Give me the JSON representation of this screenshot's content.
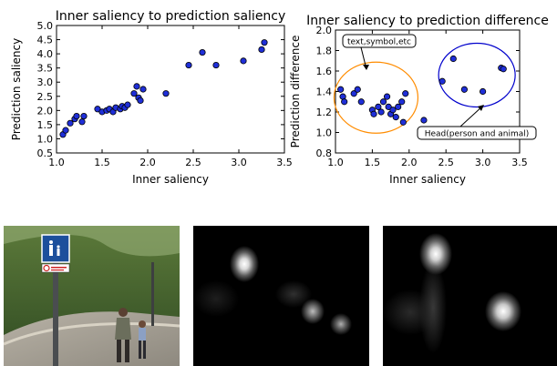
{
  "chart_data": [
    {
      "type": "scatter",
      "title": "Inner saliency to prediction saliency",
      "xlabel": "Inner saliency",
      "ylabel": "Prediction saliency",
      "xlim": [
        1.0,
        3.5
      ],
      "ylim": [
        0.5,
        5.0
      ],
      "xticks": [
        "1.0",
        "1.5",
        "2.0",
        "2.5",
        "3.0",
        "3.5"
      ],
      "yticks": [
        "0.5",
        "1.0",
        "1.5",
        "2.0",
        "2.5",
        "3.0",
        "3.5",
        "4.0",
        "4.5",
        "5.0"
      ],
      "marker_color": "#1f2fd8",
      "points": [
        [
          1.07,
          1.15
        ],
        [
          1.1,
          1.3
        ],
        [
          1.15,
          1.55
        ],
        [
          1.2,
          1.7
        ],
        [
          1.22,
          1.8
        ],
        [
          1.28,
          1.6
        ],
        [
          1.3,
          1.8
        ],
        [
          1.45,
          2.05
        ],
        [
          1.5,
          1.95
        ],
        [
          1.55,
          2.0
        ],
        [
          1.58,
          2.05
        ],
        [
          1.62,
          1.95
        ],
        [
          1.65,
          2.1
        ],
        [
          1.7,
          2.05
        ],
        [
          1.72,
          2.15
        ],
        [
          1.75,
          2.1
        ],
        [
          1.78,
          2.2
        ],
        [
          1.85,
          2.6
        ],
        [
          1.88,
          2.85
        ],
        [
          1.9,
          2.45
        ],
        [
          1.92,
          2.35
        ],
        [
          1.95,
          2.75
        ],
        [
          2.2,
          2.6
        ],
        [
          2.45,
          3.6
        ],
        [
          2.6,
          4.05
        ],
        [
          2.75,
          3.6
        ],
        [
          3.05,
          3.75
        ],
        [
          3.25,
          4.15
        ],
        [
          3.28,
          4.4
        ]
      ]
    },
    {
      "type": "scatter",
      "title": "Inner saliency to prediction difference",
      "xlabel": "Inner saliency",
      "ylabel": "Prediction difference",
      "xlim": [
        1.0,
        3.5
      ],
      "ylim": [
        0.8,
        2.0
      ],
      "xticks": [
        "1.0",
        "1.5",
        "2.0",
        "2.5",
        "3.0",
        "3.5"
      ],
      "yticks": [
        "0.8",
        "1.0",
        "1.2",
        "1.4",
        "1.6",
        "1.8",
        "2.0"
      ],
      "marker_color": "#1f2fd8",
      "points": [
        [
          1.07,
          1.42
        ],
        [
          1.1,
          1.35
        ],
        [
          1.12,
          1.3
        ],
        [
          1.25,
          1.38
        ],
        [
          1.3,
          1.42
        ],
        [
          1.35,
          1.3
        ],
        [
          1.5,
          1.22
        ],
        [
          1.52,
          1.18
        ],
        [
          1.58,
          1.25
        ],
        [
          1.62,
          1.2
        ],
        [
          1.65,
          1.3
        ],
        [
          1.7,
          1.35
        ],
        [
          1.72,
          1.25
        ],
        [
          1.75,
          1.18
        ],
        [
          1.78,
          1.22
        ],
        [
          1.82,
          1.15
        ],
        [
          1.85,
          1.25
        ],
        [
          1.9,
          1.3
        ],
        [
          1.92,
          1.1
        ],
        [
          1.95,
          1.38
        ],
        [
          2.2,
          1.12
        ],
        [
          2.45,
          1.5
        ],
        [
          2.6,
          1.72
        ],
        [
          2.75,
          1.42
        ],
        [
          3.0,
          1.4
        ],
        [
          3.25,
          1.63
        ],
        [
          3.28,
          1.62
        ]
      ],
      "annotations": [
        {
          "text": "text,symbol,etc",
          "group_color": "#ff8c00"
        },
        {
          "text": "Head(person and animal)",
          "group_color": "#0000cc"
        }
      ]
    }
  ],
  "images": {
    "sign": {
      "label_top": "",
      "label_bottom": ""
    }
  }
}
